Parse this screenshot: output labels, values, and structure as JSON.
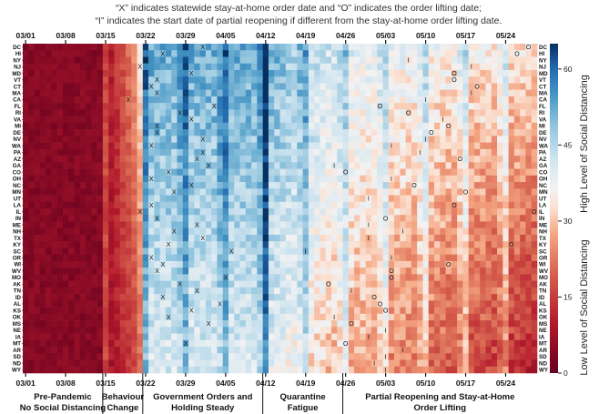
{
  "notes": [
    "“X” indicates statewide stay-at-home order date and “O” indicates the order lifting date;",
    "“I” indicates the start date of partial reopening if different from the stay-at-home order lifting date."
  ],
  "chart_data": {
    "type": "heatmap",
    "title": "",
    "x_start": "03/01",
    "n_days": 90,
    "x_ticks": [
      {
        "label": "03/01",
        "day": 0
      },
      {
        "label": "03/08",
        "day": 7
      },
      {
        "label": "03/15",
        "day": 14
      },
      {
        "label": "03/22",
        "day": 21
      },
      {
        "label": "03/29",
        "day": 28
      },
      {
        "label": "04/05",
        "day": 35
      },
      {
        "label": "04/12",
        "day": 42
      },
      {
        "label": "04/19",
        "day": 49
      },
      {
        "label": "04/26",
        "day": 56
      },
      {
        "label": "05/03",
        "day": 63
      },
      {
        "label": "05/10",
        "day": 70
      },
      {
        "label": "05/17",
        "day": 77
      },
      {
        "label": "05/24",
        "day": 84
      }
    ],
    "states": [
      "DC",
      "HI",
      "NY",
      "NJ",
      "MD",
      "VT",
      "CT",
      "MA",
      "CA",
      "FL",
      "RI",
      "VA",
      "MI",
      "DE",
      "NV",
      "WA",
      "PA",
      "AZ",
      "GA",
      "CO",
      "OH",
      "NC",
      "MN",
      "UT",
      "LA",
      "IL",
      "IN",
      "ME",
      "NH",
      "TX",
      "KY",
      "SC",
      "OR",
      "WI",
      "WV",
      "MO",
      "AK",
      "TN",
      "ID",
      "AL",
      "KS",
      "OK",
      "MS",
      "NE",
      "IA",
      "MT",
      "AR",
      "SD",
      "ND",
      "WY"
    ],
    "colorbar": {
      "min": 0,
      "max": 65,
      "ticks": [
        0,
        15,
        30,
        45,
        60
      ],
      "label_high": "High Level of Social Distancing",
      "label_low": "Low Level of Social Distancing"
    },
    "phases": [
      {
        "label_lines": [
          "Pre-Pandemic",
          "No Social Distancing"
        ],
        "start_day": 0,
        "end_day": 14
      },
      {
        "label_lines": [
          "Behaviour",
          "Change"
        ],
        "start_day": 14,
        "end_day": 21
      },
      {
        "label_lines": [
          "Government Orders and",
          "Holding Steady"
        ],
        "start_day": 21,
        "end_day": 42
      },
      {
        "label_lines": [
          "Quarantine",
          "Fatigue"
        ],
        "start_day": 42,
        "end_day": 56
      },
      {
        "label_lines": [
          "Partial Reopening and Stay-at-Home",
          "Order Lifting"
        ],
        "start_day": 56,
        "end_day": 90
      }
    ],
    "markers": [
      {
        "state": "DC",
        "type": "X",
        "day": 31
      },
      {
        "state": "DC",
        "type": "O",
        "day": 88
      },
      {
        "state": "HI",
        "type": "X",
        "day": 24
      },
      {
        "state": "HI",
        "type": "O",
        "day": 86
      },
      {
        "state": "NY",
        "type": "X",
        "day": 21
      },
      {
        "state": "NY",
        "type": "I",
        "day": 67
      },
      {
        "state": "NJ",
        "type": "X",
        "day": 20
      },
      {
        "state": "NJ",
        "type": "I",
        "day": 78
      },
      {
        "state": "MD",
        "type": "X",
        "day": 29
      },
      {
        "state": "MD",
        "type": "O",
        "day": 75
      },
      {
        "state": "VT",
        "type": "X",
        "day": 23
      },
      {
        "state": "VT",
        "type": "O",
        "day": 75
      },
      {
        "state": "CT",
        "type": "X",
        "day": 22
      },
      {
        "state": "CT",
        "type": "O",
        "day": 79
      },
      {
        "state": "MA",
        "type": "X",
        "day": 23
      },
      {
        "state": "MA",
        "type": "I",
        "day": 78
      },
      {
        "state": "CA",
        "type": "X",
        "day": 18
      },
      {
        "state": "CA",
        "type": "I",
        "day": 70
      },
      {
        "state": "FL",
        "type": "X",
        "day": 33
      },
      {
        "state": "FL",
        "type": "O",
        "day": 62
      },
      {
        "state": "RI",
        "type": "X",
        "day": 27
      },
      {
        "state": "RI",
        "type": "O",
        "day": 67
      },
      {
        "state": "VA",
        "type": "X",
        "day": 29
      },
      {
        "state": "VA",
        "type": "I",
        "day": 73
      },
      {
        "state": "MI",
        "type": "X",
        "day": 23
      },
      {
        "state": "MI",
        "type": "O",
        "day": 74
      },
      {
        "state": "DE",
        "type": "X",
        "day": 23
      },
      {
        "state": "DE",
        "type": "O",
        "day": 71
      },
      {
        "state": "NV",
        "type": "X",
        "day": 31
      },
      {
        "state": "NV",
        "type": "I",
        "day": 70
      },
      {
        "state": "WA",
        "type": "X",
        "day": 22
      },
      {
        "state": "WA",
        "type": "I",
        "day": 64
      },
      {
        "state": "PA",
        "type": "X",
        "day": 31
      },
      {
        "state": "PA",
        "type": "I",
        "day": 69
      },
      {
        "state": "AZ",
        "type": "X",
        "day": 30
      },
      {
        "state": "AZ",
        "type": "O",
        "day": 76
      },
      {
        "state": "GA",
        "type": "X",
        "day": 32
      },
      {
        "state": "GA",
        "type": "I",
        "day": 54
      },
      {
        "state": "CO",
        "type": "X",
        "day": 25
      },
      {
        "state": "CO",
        "type": "O",
        "day": 56
      },
      {
        "state": "OH",
        "type": "X",
        "day": 22
      },
      {
        "state": "OH",
        "type": "I",
        "day": 64
      },
      {
        "state": "NC",
        "type": "X",
        "day": 29
      },
      {
        "state": "NC",
        "type": "O",
        "day": 68
      },
      {
        "state": "MN",
        "type": "X",
        "day": 26
      },
      {
        "state": "MN",
        "type": "O",
        "day": 77
      },
      {
        "state": "UT",
        "type": "I",
        "day": 60
      },
      {
        "state": "LA",
        "type": "X",
        "day": 22
      },
      {
        "state": "LA",
        "type": "O",
        "day": 75
      },
      {
        "state": "IL",
        "type": "X",
        "day": 20
      },
      {
        "state": "IL",
        "type": "O",
        "day": 89
      },
      {
        "state": "IN",
        "type": "X",
        "day": 23
      },
      {
        "state": "IN",
        "type": "O",
        "day": 63
      },
      {
        "state": "ME",
        "type": "X",
        "day": 30
      },
      {
        "state": "ME",
        "type": "I",
        "day": 60
      },
      {
        "state": "NH",
        "type": "X",
        "day": 26
      },
      {
        "state": "NH",
        "type": "I",
        "day": 66
      },
      {
        "state": "TX",
        "type": "X",
        "day": 31
      },
      {
        "state": "TX",
        "type": "I",
        "day": 60
      },
      {
        "state": "KY",
        "type": "X",
        "day": 25
      },
      {
        "state": "KY",
        "type": "O",
        "day": 85
      },
      {
        "state": "SC",
        "type": "X",
        "day": 36
      },
      {
        "state": "SC",
        "type": "I",
        "day": 49
      },
      {
        "state": "OR",
        "type": "X",
        "day": 22
      },
      {
        "state": "OR",
        "type": "I",
        "day": 64
      },
      {
        "state": "WI",
        "type": "X",
        "day": 24
      },
      {
        "state": "WI",
        "type": "O",
        "day": 74
      },
      {
        "state": "WV",
        "type": "X",
        "day": 23
      },
      {
        "state": "WV",
        "type": "O",
        "day": 64
      },
      {
        "state": "MO",
        "type": "X",
        "day": 35
      },
      {
        "state": "MO",
        "type": "O",
        "day": 64
      },
      {
        "state": "AK",
        "type": "X",
        "day": 27
      },
      {
        "state": "AK",
        "type": "O",
        "day": 53
      },
      {
        "state": "TN",
        "type": "X",
        "day": 30
      },
      {
        "state": "TN",
        "type": "I",
        "day": 57
      },
      {
        "state": "ID",
        "type": "X",
        "day": 24
      },
      {
        "state": "ID",
        "type": "O",
        "day": 61
      },
      {
        "state": "AL",
        "type": "X",
        "day": 34
      },
      {
        "state": "AL",
        "type": "O",
        "day": 62
      },
      {
        "state": "KS",
        "type": "X",
        "day": 29
      },
      {
        "state": "KS",
        "type": "O",
        "day": 63
      },
      {
        "state": "OK",
        "type": "X",
        "day": 25
      },
      {
        "state": "OK",
        "type": "I",
        "day": 54
      },
      {
        "state": "MS",
        "type": "X",
        "day": 32
      },
      {
        "state": "MS",
        "type": "O",
        "day": 57
      },
      {
        "state": "NE",
        "type": "I",
        "day": 63
      },
      {
        "state": "IA",
        "type": "I",
        "day": 60
      },
      {
        "state": "MT",
        "type": "X",
        "day": 28
      },
      {
        "state": "MT",
        "type": "O",
        "day": 56
      },
      {
        "state": "AR",
        "type": "I",
        "day": 66
      },
      {
        "state": "SD",
        "type": "I",
        "day": 63
      },
      {
        "state": "ND",
        "type": "I",
        "day": 61
      },
      {
        "state": "WY",
        "type": "I",
        "day": 63
      }
    ]
  }
}
